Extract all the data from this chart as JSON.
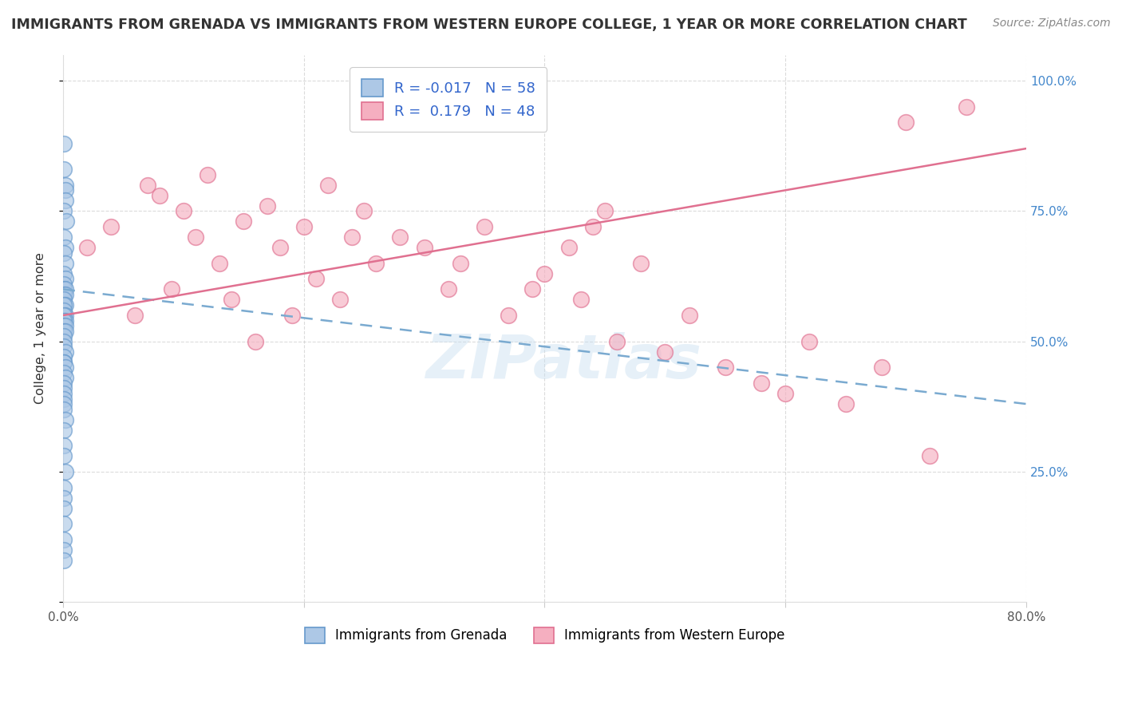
{
  "title": "IMMIGRANTS FROM GRENADA VS IMMIGRANTS FROM WESTERN EUROPE COLLEGE, 1 YEAR OR MORE CORRELATION CHART",
  "source": "Source: ZipAtlas.com",
  "ylabel": "College, 1 year or more",
  "xmin": 0.0,
  "xmax": 0.8,
  "ymin": 0.0,
  "ymax": 1.05,
  "yticks": [
    0.0,
    0.25,
    0.5,
    0.75,
    1.0
  ],
  "ytick_labels": [
    "",
    "25.0%",
    "50.0%",
    "75.0%",
    "100.0%"
  ],
  "xticks": [
    0.0,
    0.2,
    0.4,
    0.6,
    0.8
  ],
  "xtick_labels": [
    "0.0%",
    "",
    "",
    "",
    "80.0%"
  ],
  "legend_labels": [
    "Immigrants from Grenada",
    "Immigrants from Western Europe"
  ],
  "R_grenada": -0.017,
  "N_grenada": 58,
  "R_western": 0.179,
  "N_western": 48,
  "blue_color": "#adc8e6",
  "pink_color": "#f5afc0",
  "blue_edge_color": "#6699cc",
  "pink_edge_color": "#e07090",
  "blue_line_color": "#7aaad0",
  "pink_line_color": "#e07090",
  "watermark": "ZIPatlas",
  "background_color": "#ffffff",
  "scatter_alpha": 0.65,
  "scatter_size": 200,
  "grenada_x": [
    0.001,
    0.001,
    0.002,
    0.002,
    0.002,
    0.001,
    0.003,
    0.001,
    0.002,
    0.001,
    0.002,
    0.001,
    0.002,
    0.001,
    0.001,
    0.002,
    0.001,
    0.002,
    0.001,
    0.002,
    0.001,
    0.001,
    0.002,
    0.001,
    0.002,
    0.001,
    0.001,
    0.002,
    0.001,
    0.002,
    0.001,
    0.001,
    0.001,
    0.002,
    0.001,
    0.001,
    0.001,
    0.002,
    0.001,
    0.002,
    0.001,
    0.001,
    0.001,
    0.001,
    0.001,
    0.001,
    0.002,
    0.001,
    0.001,
    0.001,
    0.002,
    0.001,
    0.001,
    0.001,
    0.001,
    0.001,
    0.001,
    0.001
  ],
  "grenada_y": [
    0.88,
    0.83,
    0.8,
    0.79,
    0.77,
    0.75,
    0.73,
    0.7,
    0.68,
    0.67,
    0.65,
    0.63,
    0.62,
    0.61,
    0.6,
    0.6,
    0.59,
    0.59,
    0.58,
    0.57,
    0.57,
    0.56,
    0.55,
    0.55,
    0.54,
    0.54,
    0.53,
    0.53,
    0.52,
    0.52,
    0.51,
    0.5,
    0.49,
    0.48,
    0.47,
    0.46,
    0.46,
    0.45,
    0.44,
    0.43,
    0.42,
    0.41,
    0.4,
    0.39,
    0.38,
    0.37,
    0.35,
    0.33,
    0.3,
    0.28,
    0.25,
    0.22,
    0.2,
    0.18,
    0.15,
    0.12,
    0.1,
    0.08
  ],
  "western_x": [
    0.02,
    0.04,
    0.06,
    0.07,
    0.08,
    0.09,
    0.1,
    0.11,
    0.12,
    0.13,
    0.14,
    0.15,
    0.16,
    0.17,
    0.18,
    0.19,
    0.2,
    0.21,
    0.22,
    0.23,
    0.24,
    0.25,
    0.26,
    0.28,
    0.3,
    0.32,
    0.33,
    0.35,
    0.37,
    0.39,
    0.4,
    0.42,
    0.43,
    0.44,
    0.45,
    0.46,
    0.48,
    0.5,
    0.52,
    0.55,
    0.58,
    0.6,
    0.62,
    0.65,
    0.68,
    0.7,
    0.72,
    0.75
  ],
  "western_y": [
    0.68,
    0.72,
    0.55,
    0.8,
    0.78,
    0.6,
    0.75,
    0.7,
    0.82,
    0.65,
    0.58,
    0.73,
    0.5,
    0.76,
    0.68,
    0.55,
    0.72,
    0.62,
    0.8,
    0.58,
    0.7,
    0.75,
    0.65,
    0.7,
    0.68,
    0.6,
    0.65,
    0.72,
    0.55,
    0.6,
    0.63,
    0.68,
    0.58,
    0.72,
    0.75,
    0.5,
    0.65,
    0.48,
    0.55,
    0.45,
    0.42,
    0.4,
    0.5,
    0.38,
    0.45,
    0.92,
    0.28,
    0.95
  ],
  "trend_g_x0": 0.0,
  "trend_g_y0": 0.6,
  "trend_g_x1": 0.8,
  "trend_g_y1": 0.38,
  "trend_w_x0": 0.0,
  "trend_w_y0": 0.55,
  "trend_w_x1": 0.8,
  "trend_w_y1": 0.87
}
